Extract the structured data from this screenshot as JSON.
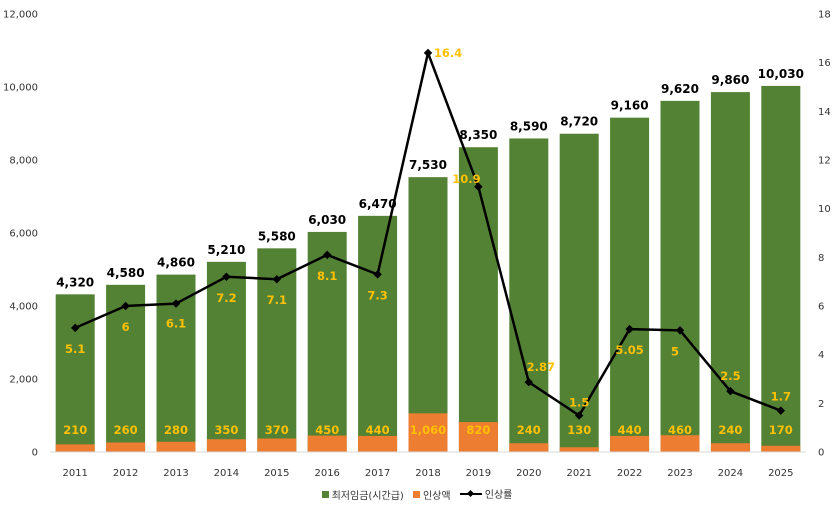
{
  "chart_data": {
    "type": "bar",
    "categories": [
      "2011",
      "2012",
      "2013",
      "2014",
      "2015",
      "2016",
      "2017",
      "2018",
      "2019",
      "2020",
      "2021",
      "2022",
      "2023",
      "2024",
      "2025"
    ],
    "series": [
      {
        "name": "최저임금(시간급)",
        "kind": "bar",
        "axis": "left",
        "values": [
          4320,
          4580,
          4860,
          5210,
          5580,
          6030,
          6470,
          7530,
          8350,
          8590,
          8720,
          9160,
          9620,
          9860,
          10030
        ],
        "labels": [
          "4,320",
          "4,580",
          "4,860",
          "5,210",
          "5,580",
          "6,030",
          "6,470",
          "7,530",
          "8,350",
          "8,590",
          "8,720",
          "9,160",
          "9,620",
          "9,860",
          "10,030"
        ]
      },
      {
        "name": "인상액",
        "kind": "bar",
        "axis": "left",
        "values": [
          210,
          260,
          280,
          350,
          370,
          450,
          440,
          1060,
          820,
          240,
          130,
          440,
          460,
          240,
          170
        ],
        "labels": [
          "210",
          "260",
          "280",
          "350",
          "370",
          "450",
          "440",
          "1,060",
          "820",
          "240",
          "130",
          "440",
          "460",
          "240",
          "170"
        ]
      },
      {
        "name": "인상률",
        "kind": "line",
        "axis": "right",
        "values": [
          5.1,
          6,
          6.1,
          7.2,
          7.1,
          8.1,
          7.3,
          16.4,
          10.9,
          2.87,
          1.5,
          5.05,
          5,
          2.5,
          1.7
        ],
        "labels": [
          "5.1",
          "6",
          "6.1",
          "7.2",
          "7.1",
          "8.1",
          "7.3",
          "16.4",
          "10.9",
          "2.87",
          "1.5",
          "5.05",
          "5",
          "2.5",
          "1.7"
        ]
      }
    ],
    "y_left": {
      "range": [
        0,
        12000
      ],
      "ticks": [
        0,
        2000,
        4000,
        6000,
        8000,
        10000,
        12000
      ],
      "tick_labels": [
        "0",
        "2,000",
        "4,000",
        "6,000",
        "8,000",
        "10,000",
        "12,000"
      ]
    },
    "y_right": {
      "range": [
        0,
        18
      ],
      "ticks": [
        0,
        2,
        4,
        6,
        8,
        10,
        12,
        14,
        16,
        18
      ],
      "tick_labels": [
        "0",
        "2",
        "4",
        "6",
        "8",
        "10",
        "12",
        "14",
        "16",
        "18"
      ]
    },
    "title": "",
    "xlabel": "",
    "ylabel": "",
    "grid": false,
    "legend_position": "bottom",
    "colors": {
      "wage": "#548235",
      "increase": "#ed7d31",
      "rate_line": "#000000",
      "rate_label": "#ffc000",
      "axis_text": "#333333",
      "total_label": "#000000",
      "increase_label": "#ffc000"
    }
  },
  "legend": {
    "items": [
      {
        "label": "최저임금(시간급)",
        "color": "#548235"
      },
      {
        "label": "인상액",
        "color": "#ed7d31"
      },
      {
        "label": "인상률",
        "color": "#000000"
      }
    ]
  }
}
